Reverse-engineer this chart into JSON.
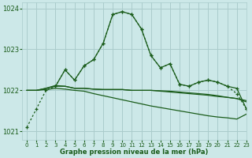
{
  "title": "Graphe pression niveau de la mer (hPa)",
  "background_color": "#cce8e8",
  "grid_color": "#aacccc",
  "line_color": "#1a5c1a",
  "xlim": [
    -0.5,
    23
  ],
  "ylim": [
    1020.8,
    1024.15
  ],
  "yticks": [
    1021,
    1022,
    1023,
    1024
  ],
  "xticks": [
    0,
    1,
    2,
    3,
    4,
    5,
    6,
    7,
    8,
    9,
    10,
    11,
    12,
    13,
    14,
    15,
    16,
    17,
    18,
    19,
    20,
    21,
    22,
    23
  ],
  "series": [
    {
      "x": [
        0,
        1,
        2,
        3,
        4,
        5,
        6,
        7,
        8,
        9,
        10,
        11,
        12,
        13,
        14,
        15,
        16,
        17,
        18,
        19,
        20,
        21,
        22,
        23
      ],
      "y": [
        1021.1,
        1021.55,
        1022.0,
        1022.1,
        1022.5,
        1022.25,
        1022.6,
        1022.75,
        1023.15,
        1023.85,
        1023.92,
        1023.85,
        1023.5,
        1022.85,
        1022.55,
        1022.65,
        1022.15,
        1022.1,
        1022.2,
        1022.25,
        1022.2,
        1022.1,
        1021.92,
        1021.55
      ],
      "style": "dotted",
      "marker": "+"
    },
    {
      "x": [
        3,
        4,
        5,
        6,
        7,
        8,
        9,
        10,
        11,
        12,
        13,
        14,
        15,
        16,
        17,
        18,
        19,
        20,
        21,
        22,
        23
      ],
      "y": [
        1022.1,
        1022.5,
        1022.25,
        1022.6,
        1022.75,
        1023.15,
        1023.85,
        1023.92,
        1023.85,
        1023.5,
        1022.85,
        1022.55,
        1022.65,
        1022.15,
        1022.1,
        1022.2,
        1022.25,
        1022.2,
        1022.1,
        1022.05,
        1021.55
      ],
      "style": "solid",
      "marker": "+"
    },
    {
      "x": [
        0,
        1,
        2,
        3,
        4,
        5,
        6,
        7,
        8,
        9,
        10,
        11,
        12,
        13,
        14,
        15,
        16,
        17,
        18,
        19,
        20,
        21,
        22,
        23
      ],
      "y": [
        1022.0,
        1022.0,
        1022.05,
        1022.1,
        1022.1,
        1022.05,
        1022.05,
        1022.03,
        1022.02,
        1022.02,
        1022.02,
        1022.0,
        1022.0,
        1022.0,
        1021.98,
        1021.96,
        1021.94,
        1021.92,
        1021.9,
        1021.88,
        1021.85,
        1021.83,
        1021.8,
        1021.75
      ],
      "style": "solid",
      "marker": null
    },
    {
      "x": [
        0,
        1,
        2,
        3,
        4,
        5,
        6,
        7,
        8,
        9,
        10,
        11,
        12,
        13,
        14,
        15,
        16,
        17,
        18,
        19,
        20,
        21,
        22,
        23
      ],
      "y": [
        1022.0,
        1022.0,
        1022.05,
        1022.12,
        1022.1,
        1022.05,
        1022.05,
        1022.03,
        1022.02,
        1022.02,
        1022.02,
        1022.0,
        1022.0,
        1022.0,
        1021.99,
        1021.98,
        1021.96,
        1021.94,
        1021.92,
        1021.9,
        1021.87,
        1021.83,
        1021.8,
        1021.72
      ],
      "style": "solid",
      "marker": null
    },
    {
      "x": [
        0,
        1,
        2,
        3,
        4,
        5,
        6,
        7,
        8,
        9,
        10,
        11,
        12,
        13,
        14,
        15,
        16,
        17,
        18,
        19,
        20,
        21,
        22,
        23
      ],
      "y": [
        1022.0,
        1022.0,
        1022.02,
        1022.05,
        1022.03,
        1022.0,
        1021.98,
        1021.92,
        1021.87,
        1021.82,
        1021.77,
        1021.72,
        1021.67,
        1021.62,
        1021.58,
        1021.54,
        1021.5,
        1021.46,
        1021.42,
        1021.38,
        1021.35,
        1021.33,
        1021.3,
        1021.42
      ],
      "style": "solid",
      "marker": null
    }
  ]
}
